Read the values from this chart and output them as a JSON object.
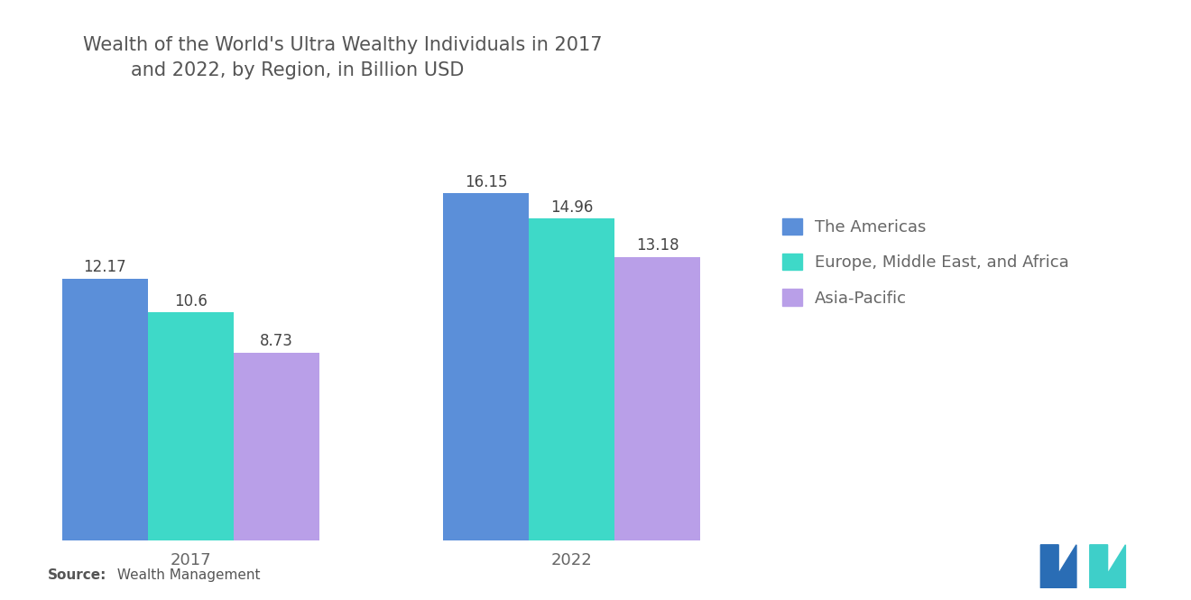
{
  "title": "Wealth of the World's Ultra Wealthy Individuals in 2017\n        and 2022, by Region, in Billion USD",
  "categories": [
    "2017",
    "2022"
  ],
  "series": [
    {
      "label": "The Americas",
      "values": [
        12.17,
        16.15
      ],
      "color": "#5B8FD9"
    },
    {
      "label": "Europe, Middle East, and Africa",
      "values": [
        10.6,
        14.96
      ],
      "color": "#3ED9C8"
    },
    {
      "label": "Asia-Pacific",
      "values": [
        8.73,
        13.18
      ],
      "color": "#B99FE8"
    }
  ],
  "source_label": "Source:",
  "source_text": " Wealth Management",
  "background_color": "#FFFFFF",
  "bar_width": 0.18,
  "title_fontsize": 15,
  "tick_fontsize": 13,
  "legend_fontsize": 13,
  "annotation_fontsize": 12,
  "ylim": [
    0,
    19
  ],
  "group_centers": [
    0.3,
    1.1
  ]
}
